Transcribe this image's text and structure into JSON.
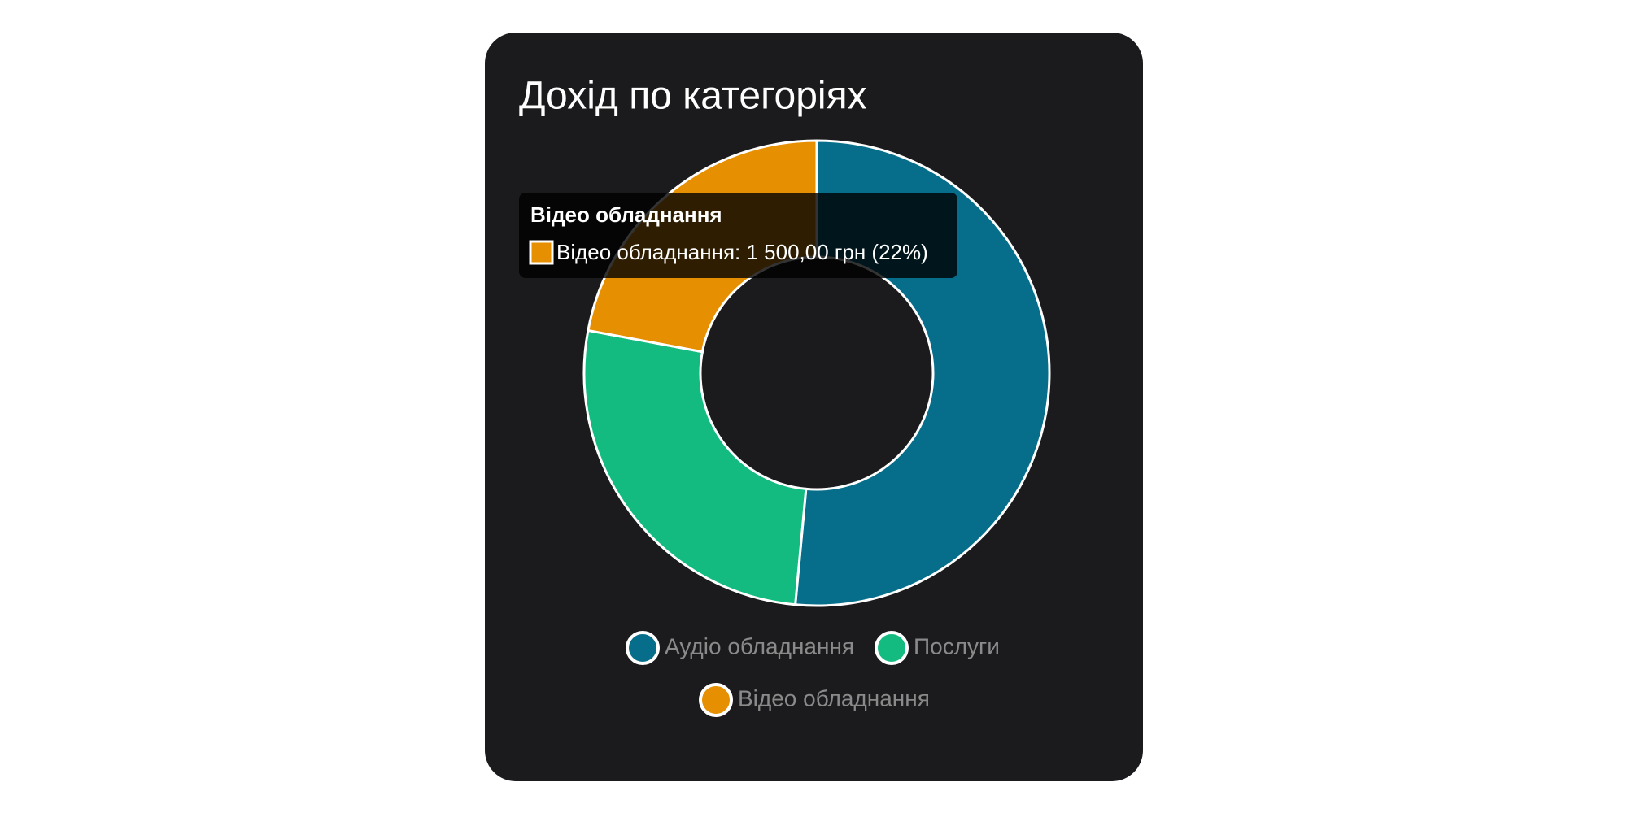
{
  "chart_data": {
    "type": "doughnut",
    "title": "Дохід по категоріях",
    "categories": [
      "Аудіо обладнання",
      "Послуги",
      "Відео обладнання"
    ],
    "values": [
      3500,
      1800,
      1500
    ],
    "colors": [
      "#066e8a",
      "#14bb80",
      "#e68f00"
    ],
    "tooltip": {
      "title": "Відео обладнання",
      "text": "Відео обладнання: 1 500,00 грн (22%)",
      "index": 2
    }
  }
}
